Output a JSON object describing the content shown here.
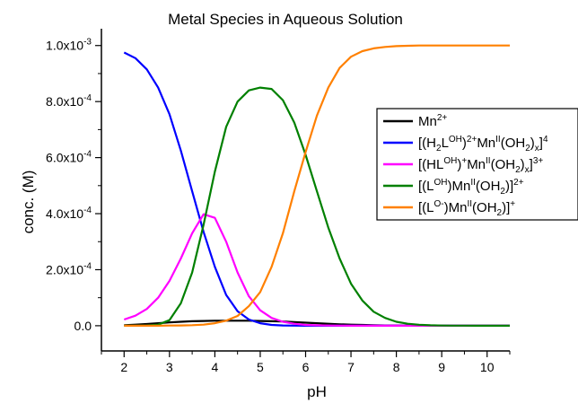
{
  "chart_data": {
    "type": "line",
    "title": "Metal Species in Aqueous Solution",
    "xlabel": "pH",
    "ylabel": "conc. (M)",
    "xlim": [
      1.5,
      10.5
    ],
    "ylim": [
      -9e-05,
      0.00106
    ],
    "x_ticks": [
      2,
      3,
      4,
      5,
      6,
      7,
      8,
      9,
      10
    ],
    "x_tick_labels": [
      "2",
      "3",
      "4",
      "5",
      "6",
      "7",
      "8",
      "9",
      "10"
    ],
    "y_ticks": [
      0,
      0.0002,
      0.0004,
      0.0006,
      0.0008,
      0.001
    ],
    "y_tick_labels": [
      "0.0",
      "2.0x10",
      "4.0x10",
      "6.0x10",
      "8.0x10",
      "1.0x10"
    ],
    "y_tick_exponents": [
      "",
      "-4",
      "-4",
      "-4",
      "-4",
      "-3"
    ],
    "grid": false,
    "legend_position": "right",
    "x": [
      2.0,
      2.25,
      2.5,
      2.75,
      3.0,
      3.25,
      3.5,
      3.75,
      4.0,
      4.25,
      4.5,
      4.75,
      5.0,
      5.25,
      5.5,
      5.75,
      6.0,
      6.25,
      6.5,
      6.75,
      7.0,
      7.25,
      7.5,
      7.75,
      8.0,
      8.25,
      8.5,
      8.75,
      9.0,
      9.25,
      9.5,
      9.75,
      10.0,
      10.25,
      10.5
    ],
    "series": [
      {
        "name_parts": [
          [
            "Mn",
            ""
          ],
          [
            "2+",
            "sup"
          ]
        ],
        "color": "#000000",
        "values": [
          2e-06,
          4e-06,
          6e-06,
          9e-06,
          1.2e-05,
          1.4e-05,
          1.6e-05,
          1.7e-05,
          1.8e-05,
          1.8e-05,
          1.8e-05,
          1.8e-05,
          1.7e-05,
          1.6e-05,
          1.5e-05,
          1.3e-05,
          1.1e-05,
          9e-06,
          7e-06,
          5e-06,
          4e-06,
          3e-06,
          2e-06,
          1e-06,
          1e-06,
          5e-07,
          3e-07,
          2e-07,
          1e-07,
          0,
          0,
          0,
          0,
          0,
          0
        ]
      },
      {
        "name_parts": [
          [
            "[(H",
            ""
          ],
          [
            "2",
            "sub"
          ],
          [
            "L",
            ""
          ],
          [
            "OH",
            "sup"
          ],
          [
            ")",
            ""
          ],
          [
            "2+",
            "sup"
          ],
          [
            "Mn",
            ""
          ],
          [
            "II",
            "sup"
          ],
          [
            "(OH",
            ""
          ],
          [
            "2",
            "sub"
          ],
          [
            ")",
            ""
          ],
          [
            "x",
            "sub"
          ],
          [
            "]",
            ""
          ],
          [
            "4",
            "sup"
          ]
        ],
        "color": "#0000ff",
        "values": [
          0.000975,
          0.000955,
          0.000915,
          0.00085,
          0.000755,
          0.000625,
          0.00048,
          0.000335,
          0.00021,
          0.00011,
          5.2e-05,
          2.2e-05,
          9e-06,
          3e-06,
          1e-06,
          3e-07,
          1e-07,
          0,
          0,
          0,
          0,
          0,
          0,
          0,
          0,
          0,
          0,
          0,
          0,
          0,
          0,
          0,
          0,
          0,
          0
        ]
      },
      {
        "name_parts": [
          [
            "[(HL",
            ""
          ],
          [
            "OH",
            "sup"
          ],
          [
            ")",
            ""
          ],
          [
            "+",
            "sup"
          ],
          [
            "Mn",
            ""
          ],
          [
            "II",
            "sup"
          ],
          [
            "(OH",
            ""
          ],
          [
            "2",
            "sub"
          ],
          [
            ")",
            ""
          ],
          [
            "x",
            "sub"
          ],
          [
            "]",
            ""
          ],
          [
            "3+",
            "sup"
          ]
        ],
        "color": "#ff00ff",
        "values": [
          2.2e-05,
          3.6e-05,
          6e-05,
          0.0001,
          0.00016,
          0.00024,
          0.00033,
          0.000398,
          0.000385,
          0.0003,
          0.00019,
          0.000105,
          5.5e-05,
          2.8e-05,
          1.4e-05,
          7e-06,
          3e-06,
          1.5e-06,
          7e-07,
          3e-07,
          1e-07,
          0,
          0,
          0,
          0,
          0,
          0,
          0,
          0,
          0,
          0,
          0,
          0,
          0,
          0
        ]
      },
      {
        "name_parts": [
          [
            "[(L",
            ""
          ],
          [
            "OH",
            "sup"
          ],
          [
            ")Mn",
            ""
          ],
          [
            "II",
            "sup"
          ],
          [
            "(OH",
            ""
          ],
          [
            "2",
            "sub"
          ],
          [
            ")]",
            ""
          ],
          [
            "2+",
            "sup"
          ]
        ],
        "color": "#008000",
        "values": [
          0,
          0,
          1e-06,
          4e-06,
          2e-05,
          8e-05,
          0.00019,
          0.00036,
          0.00055,
          0.00071,
          0.0008,
          0.00084,
          0.00085,
          0.000845,
          0.000805,
          0.000725,
          0.00061,
          0.00048,
          0.00035,
          0.00024,
          0.00015,
          9e-05,
          5e-05,
          2.8e-05,
          1.4e-05,
          7e-06,
          3.5e-06,
          1.7e-06,
          8e-07,
          4e-07,
          2e-07,
          1e-07,
          0,
          0,
          0
        ]
      },
      {
        "name_parts": [
          [
            "[(L",
            ""
          ],
          [
            "O-",
            "sup"
          ],
          [
            ")Mn",
            ""
          ],
          [
            "II",
            "sup"
          ],
          [
            "(OH",
            ""
          ],
          [
            "2",
            "sub"
          ],
          [
            ")]",
            ""
          ],
          [
            "+",
            "sup"
          ]
        ],
        "color": "#ff8000",
        "values": [
          0,
          0,
          0,
          0,
          5e-07,
          1e-06,
          2e-06,
          4e-06,
          9e-06,
          1.8e-05,
          3.5e-05,
          7e-05,
          0.00012,
          0.00021,
          0.00033,
          0.00048,
          0.00062,
          0.00075,
          0.00085,
          0.00092,
          0.00096,
          0.00098,
          0.00099,
          0.000995,
          0.000998,
          0.000999,
          0.001,
          0.001,
          0.001,
          0.001,
          0.001,
          0.001,
          0.001,
          0.001,
          0.001
        ]
      }
    ]
  }
}
